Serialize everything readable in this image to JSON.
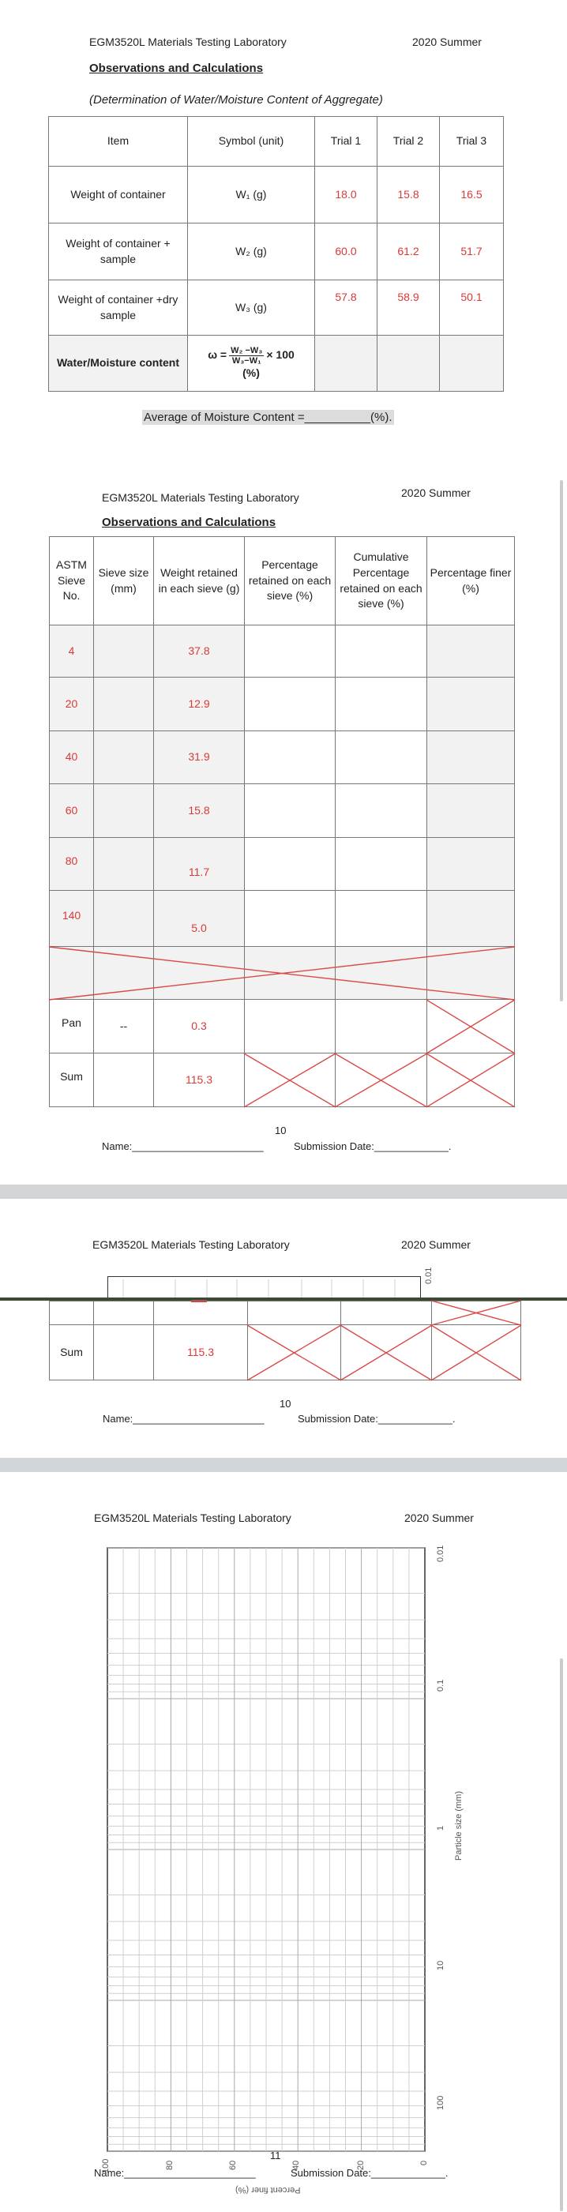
{
  "header": {
    "lab": "EGM3520L Materials Testing Laboratory",
    "term": "2020 Summer"
  },
  "page1": {
    "title": "Observations and Calculations",
    "subtitle": "(Determination of Water/Moisture Content of Aggregate)",
    "table": {
      "headers": [
        "Item",
        "Symbol (unit)",
        "Trial 1",
        "Trial 2",
        "Trial 3"
      ],
      "rows": [
        {
          "item": "Weight of container",
          "symbol": "W₁ (g)",
          "values": [
            "18.0",
            "15.8",
            "16.5"
          ]
        },
        {
          "item": "Weight of container + sample",
          "symbol": "W₂ (g)",
          "values": [
            "60.0",
            "61.2",
            "51.7"
          ]
        },
        {
          "item": "Weight of container +dry sample",
          "symbol": "W₃ (g)",
          "values": [
            "57.8",
            "58.9",
            "50.1"
          ]
        }
      ],
      "result": {
        "item": "Water/Moisture content",
        "omega": "ω =",
        "num": "W₂ −W₃",
        "den": "W₃−W₁",
        "times": "× 100",
        "unit": "(%)"
      }
    },
    "average": "Average of Moisture Content =__________(%)."
  },
  "page2": {
    "title": "Observations and Calculations",
    "headers": [
      "ASTM Sieve No.",
      "Sieve size (mm)",
      "Weight retained in each sieve (g)",
      "Percentage retained on each sieve (%)",
      "Cumulative Percentage retained on each sieve (%)",
      "Percentage finer (%)"
    ],
    "rows": [
      {
        "sieve": "4",
        "weight": "37.8"
      },
      {
        "sieve": "20",
        "weight": "12.9"
      },
      {
        "sieve": "40",
        "weight": "31.9"
      },
      {
        "sieve": "60",
        "weight": "15.8"
      },
      {
        "sieve": "80",
        "weight": "11.7"
      },
      {
        "sieve": "140",
        "weight": "5.0"
      }
    ],
    "pan": {
      "label": "Pan",
      "size": "--",
      "weight": "0.3"
    },
    "sum": {
      "label": "Sum",
      "weight": "115.3"
    },
    "page_number": "10",
    "name_line": "Name:_______________________",
    "date_line": "Submission Date:_____________."
  },
  "page3": {
    "sum": {
      "label": "Sum",
      "weight": "115.3"
    },
    "page_number": "10",
    "name_line": "Name:_______________________",
    "date_line": "Submission Date:_____________.",
    "axis_label_top": "0.01"
  },
  "page4": {
    "page_number": "11",
    "name_line": "Name:_______________________",
    "date_line": "Submission Date:_____________.",
    "graph": {
      "x_axis_label": "Particle size (mm)",
      "x_ticks": [
        "0.01",
        "0.1",
        "1",
        "10",
        "100"
      ],
      "y_axis_label": "Percent finer (%)",
      "y_ticks": [
        "100",
        "80",
        "60",
        "40",
        "20",
        "0"
      ]
    }
  }
}
